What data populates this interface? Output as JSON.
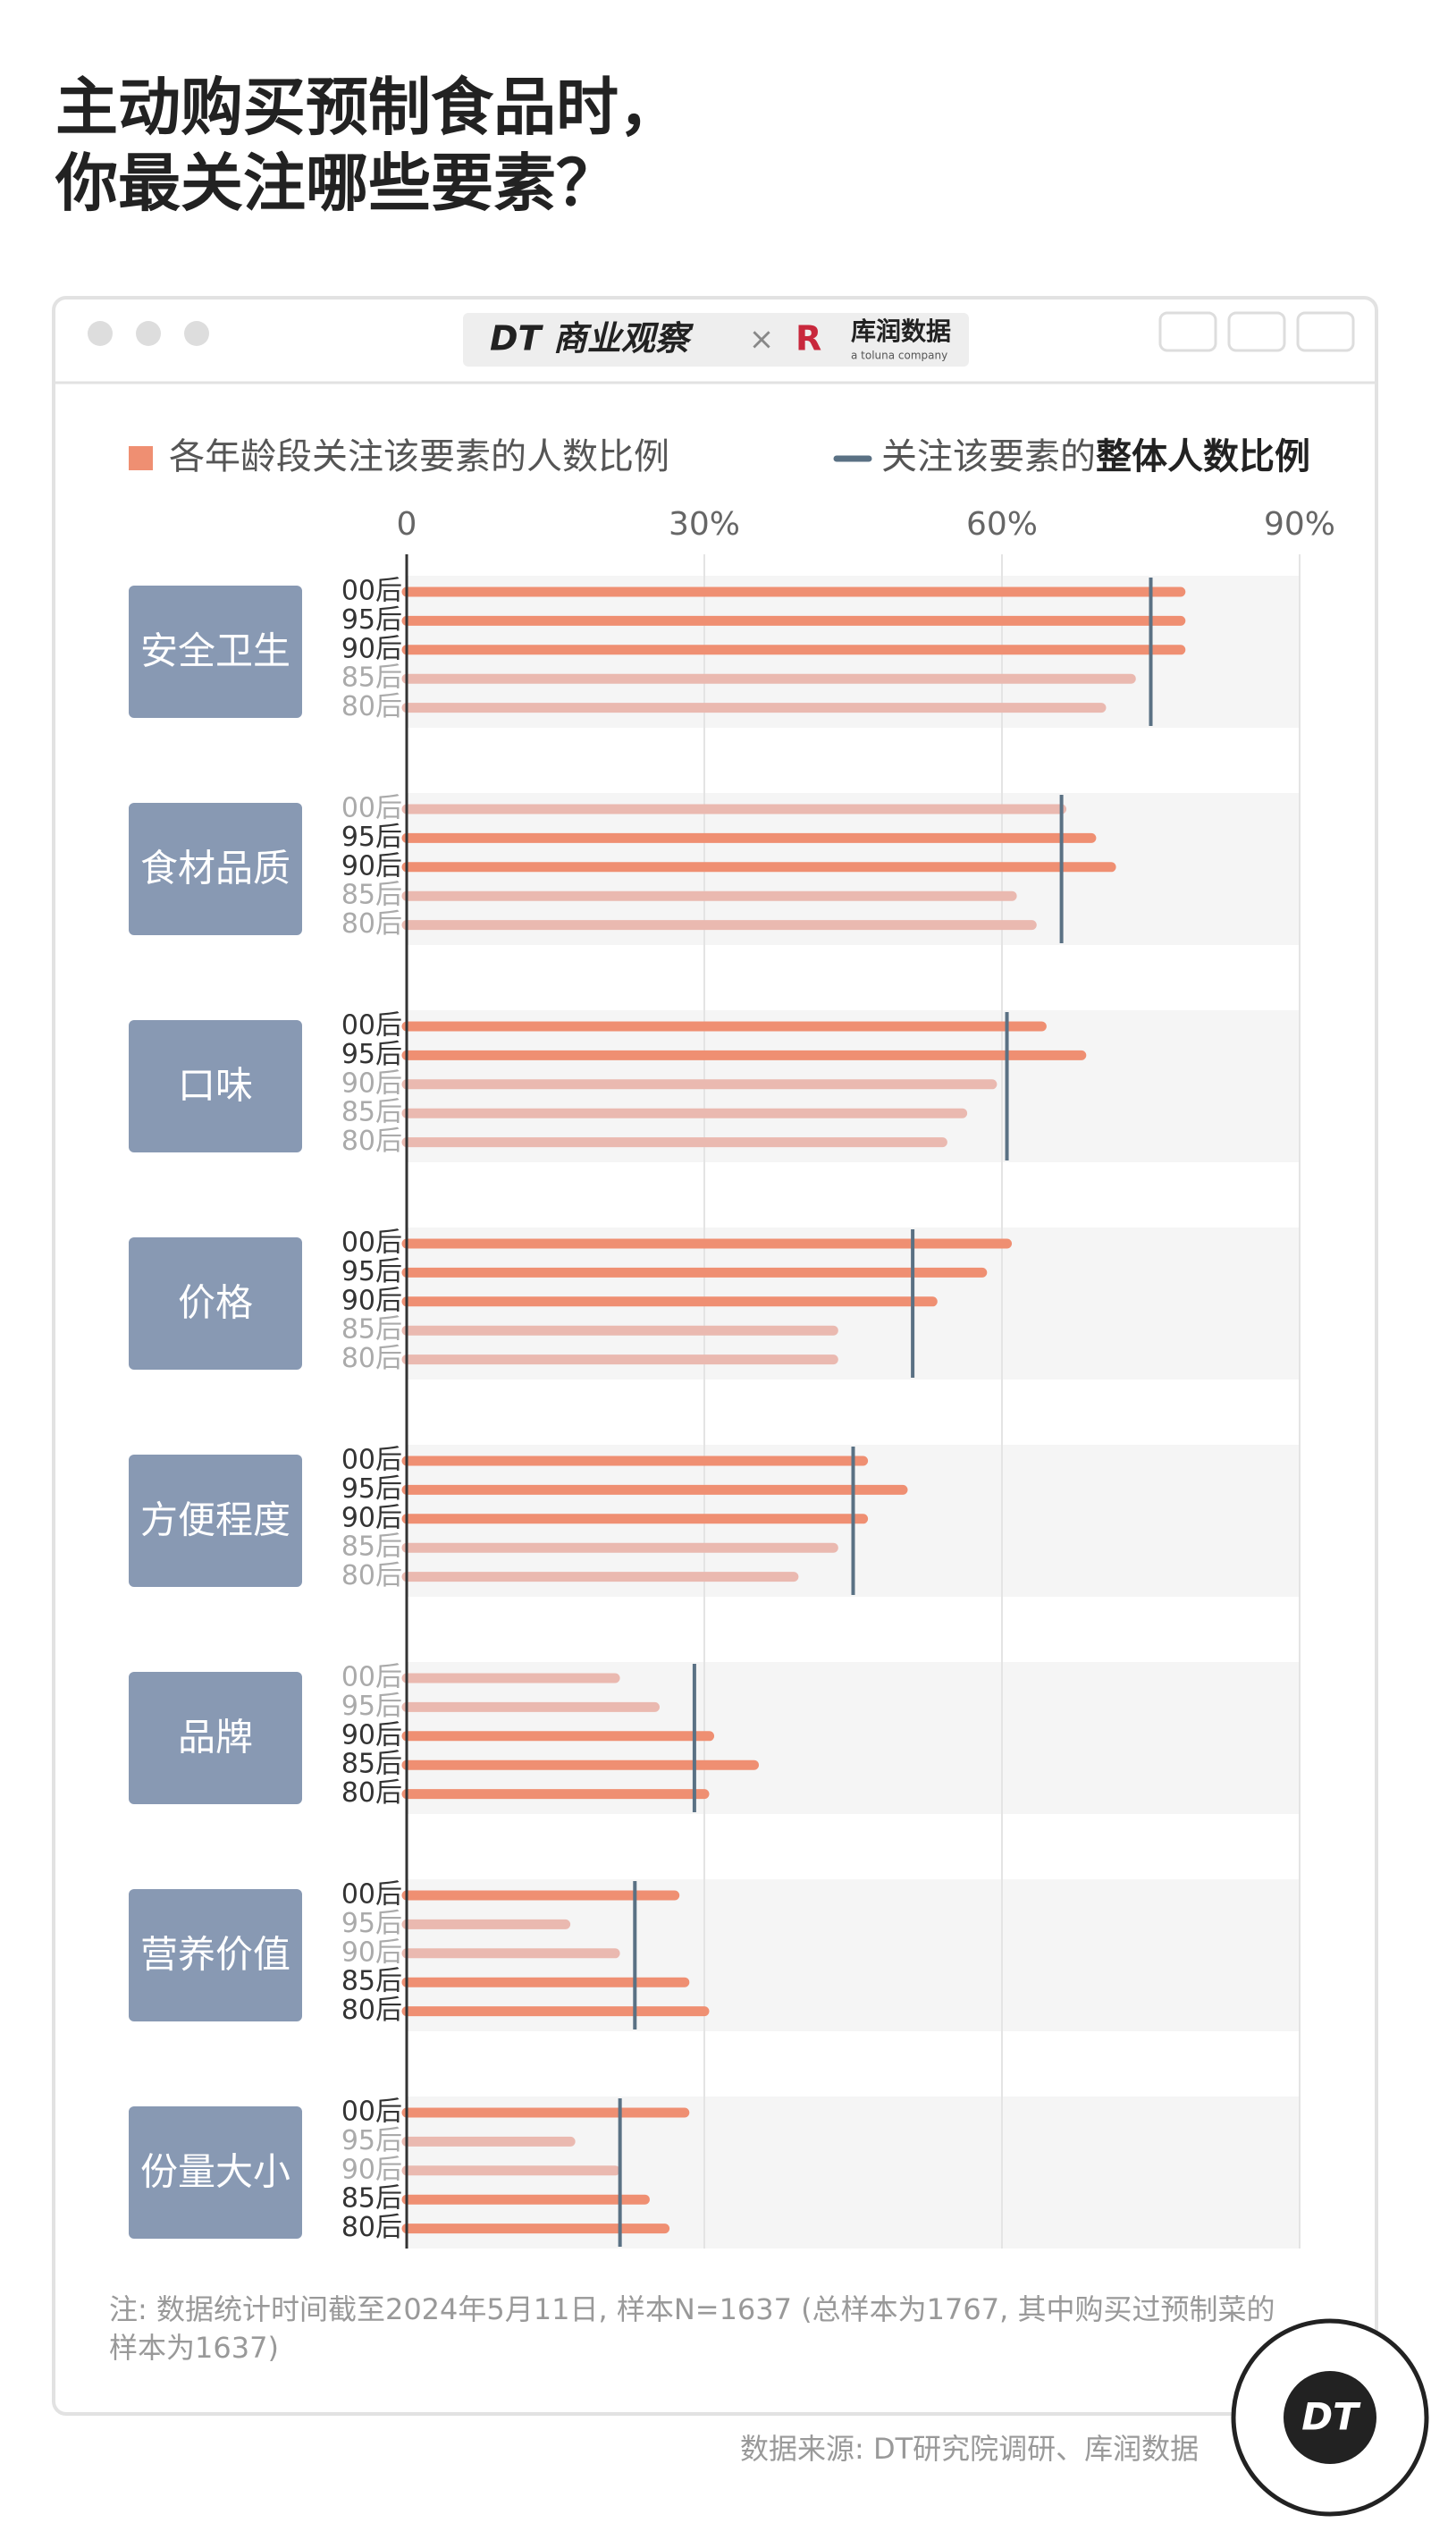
{
  "title_lines": [
    "主动购买预制食品时，",
    "你最关注哪些要素？"
  ],
  "header": {
    "brand_left": "DT 商业观察",
    "separator": "×",
    "brand_right": "库润数据",
    "brand_right_sub": "a toluna company"
  },
  "chart_data": {
    "type": "bar",
    "orientation": "horizontal",
    "legend": {
      "bars": {
        "label": "各年龄段关注该要素的人数比例",
        "color": "#ef8f72"
      },
      "overall": {
        "label_parts": [
          "关注该要素的",
          "整体人数比例"
        ],
        "color": "#5a7184"
      }
    },
    "categories": [
      "安全卫生",
      "食材品质",
      "口味",
      "价格",
      "方便程度",
      "品牌",
      "营养价值",
      "份量大小"
    ],
    "highlight_color": "#ef8f72",
    "series": [
      {
        "name": "00后",
        "values": [
          78,
          66,
          64,
          60.5,
          46,
          21,
          27,
          28
        ],
        "colors": [
          "#ef8f72",
          "#eab9b0",
          "#ef8f72",
          "#ef8f72",
          "#ef8f72",
          "#eab9b0",
          "#ef8f72",
          "#ef8f72"
        ]
      },
      {
        "name": "95后",
        "values": [
          78,
          69,
          68,
          58,
          50,
          25,
          16,
          16.5
        ],
        "colors": [
          "#ef8f72",
          "#ef8f72",
          "#ef8f72",
          "#ef8f72",
          "#ef8f72",
          "#eab9b0",
          "#eab9b0",
          "#eab9b0"
        ]
      },
      {
        "name": "90后",
        "values": [
          78,
          71,
          59,
          53,
          46,
          30.5,
          21,
          21
        ],
        "colors": [
          "#ef8f72",
          "#ef8f72",
          "#eab9b0",
          "#ef8f72",
          "#ef8f72",
          "#ef8f72",
          "#eab9b0",
          "#eab9b0"
        ]
      },
      {
        "name": "85后",
        "values": [
          73,
          61,
          56,
          43,
          43,
          35,
          28,
          24
        ],
        "colors": [
          "#eab9b0",
          "#eab9b0",
          "#eab9b0",
          "#eab9b0",
          "#eab9b0",
          "#ef8f72",
          "#ef8f72",
          "#ef8f72"
        ]
      },
      {
        "name": "80后",
        "values": [
          70,
          63,
          54,
          43,
          39,
          30,
          30,
          26
        ],
        "colors": [
          "#eab9b0",
          "#eab9b0",
          "#eab9b0",
          "#eab9b0",
          "#eab9b0",
          "#ef8f72",
          "#ef8f72",
          "#ef8f72"
        ]
      }
    ],
    "overall": {
      "values": [
        75,
        66,
        60.5,
        51,
        45,
        29,
        23,
        21.5
      ]
    },
    "xlim": [
      0,
      90
    ],
    "xticks": [
      0,
      {
        "value": 30,
        "label": "30%"
      },
      {
        "value": 60,
        "label": "60%"
      },
      {
        "value": 90,
        "label": "90%"
      }
    ],
    "grid": true
  },
  "note_lines": [
    "注: 数据统计时间截至2024年5月11日, 样本N=1637 (总样本为1767, 其中购买过预制菜的",
    "样本为1637)"
  ],
  "source": "数据来源: DT研究院调研、库润数据",
  "logo": "DT"
}
